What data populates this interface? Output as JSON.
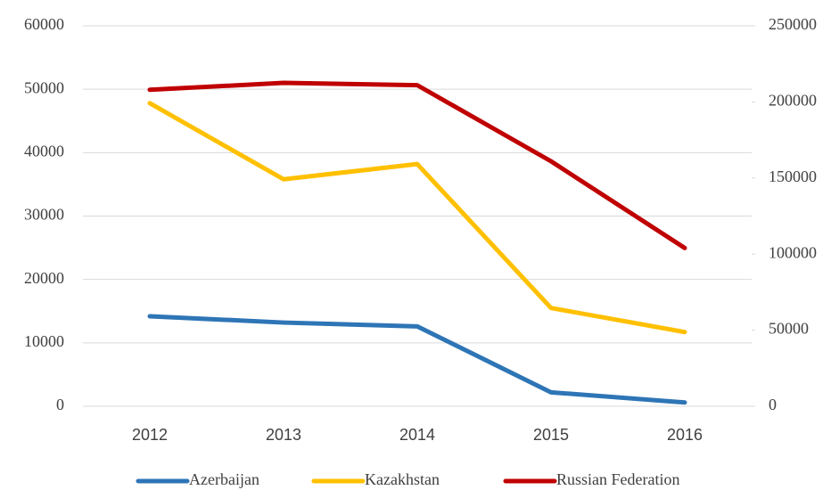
{
  "chart_data": {
    "type": "line",
    "categories": [
      "2012",
      "2013",
      "2014",
      "2015",
      "2016"
    ],
    "series": [
      {
        "name": "Azerbaijan",
        "color": "#2e75b6",
        "values": [
          14200,
          13200,
          12600,
          2200,
          600
        ]
      },
      {
        "name": "Kazakhstan",
        "color": "#ffc000",
        "values": [
          47800,
          35800,
          38200,
          15500,
          11700
        ]
      },
      {
        "name": "Russian Federation",
        "color": "#c00000",
        "axis": "y2",
        "values": [
          208000,
          212500,
          211000,
          161000,
          104000
        ]
      }
    ],
    "ylim": [
      0,
      60000
    ],
    "yticks": [
      0,
      10000,
      20000,
      30000,
      40000,
      50000,
      60000
    ],
    "y2lim": [
      0,
      250000
    ],
    "y2ticks": [
      0,
      50000,
      100000,
      150000,
      200000,
      250000
    ],
    "grid": true,
    "legend": "bottom"
  }
}
